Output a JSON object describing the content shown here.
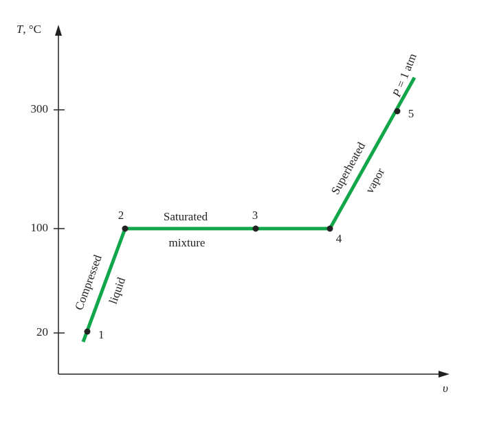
{
  "axes": {
    "y_label_symbol": "T",
    "y_label_unit": ", °C",
    "x_label": "υ",
    "y_ticks": [
      300,
      100,
      20
    ]
  },
  "points": [
    "1",
    "2",
    "3",
    "4",
    "5"
  ],
  "regions": {
    "compressed": "Compressed",
    "liquid": "liquid",
    "saturated": "Saturated",
    "mixture": "mixture",
    "superheated": "Superheated",
    "vapor": "vapor"
  },
  "pressure": {
    "symbol": "P",
    "rest": " = 1 atm"
  }
}
